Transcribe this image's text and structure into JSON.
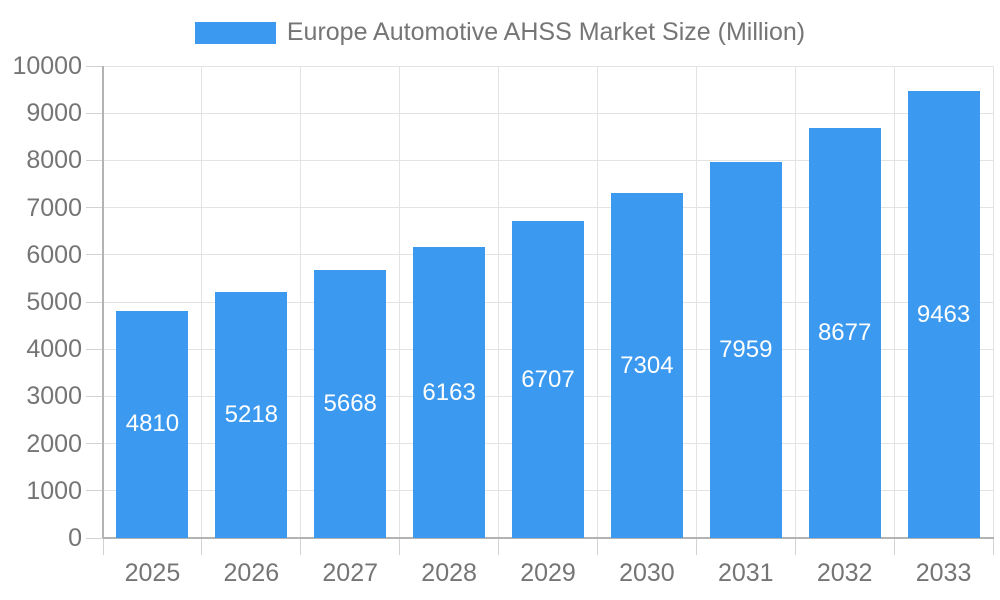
{
  "chart_data": {
    "type": "bar",
    "title": "Europe Automotive AHSS Market Size (Million)",
    "categories": [
      "2025",
      "2026",
      "2027",
      "2028",
      "2029",
      "2030",
      "2031",
      "2032",
      "2033"
    ],
    "values": [
      4810,
      5218,
      5668,
      6163,
      6707,
      7304,
      7959,
      8677,
      9463
    ],
    "xlabel": "",
    "ylabel": "",
    "ylim": [
      0,
      10000
    ],
    "yticks": [
      0,
      1000,
      2000,
      3000,
      4000,
      5000,
      6000,
      7000,
      8000,
      9000,
      10000
    ],
    "grid": true,
    "legend_position": "top",
    "bar_label_position": "inside-center",
    "colors": {
      "bar": "#3b99f0",
      "bar_label": "#ffffff",
      "axis_text": "#757575",
      "axis_line": "#b3b3b3",
      "gridline": "#e3e3e3",
      "tick": "#d2d2d2",
      "background": "#ffffff"
    }
  }
}
